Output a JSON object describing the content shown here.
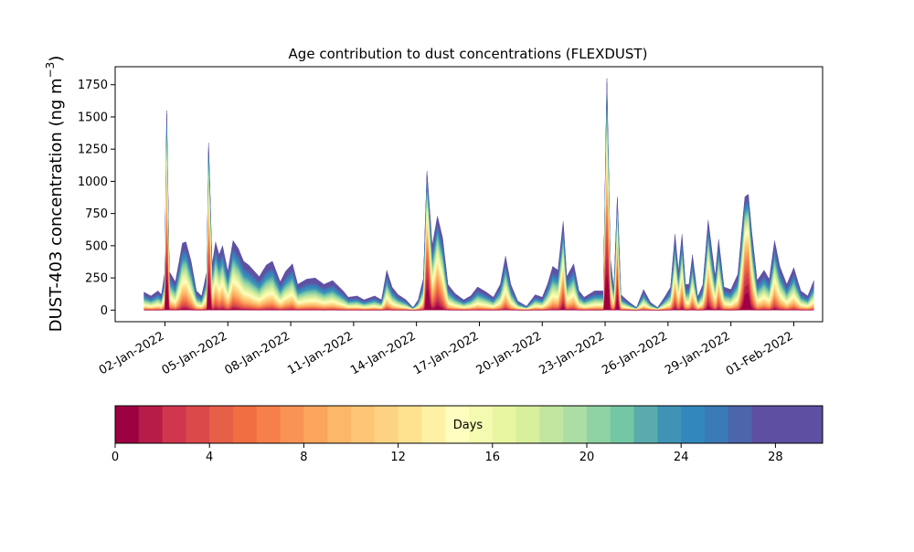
{
  "chart_data": {
    "type": "area",
    "title": "Age contribution to dust concentrations (FLEXDUST)",
    "ylabel": "DUST-403 concentration (ng m",
    "ylabel_superscript": "−3",
    "ylabel_close": ")",
    "xlabel": "",
    "x_dates": [
      "2022-01-01",
      "2022-01-02",
      "2022-01-03",
      "2022-01-04",
      "2022-01-05",
      "2022-01-06",
      "2022-01-07",
      "2022-01-08",
      "2022-01-09",
      "2022-01-10",
      "2022-01-11",
      "2022-01-12",
      "2022-01-13",
      "2022-01-14",
      "2022-01-15",
      "2022-01-16",
      "2022-01-17",
      "2022-01-18",
      "2022-01-19",
      "2022-01-20",
      "2022-01-21",
      "2022-01-22",
      "2022-01-23",
      "2022-01-24",
      "2022-01-25",
      "2022-01-26",
      "2022-01-27",
      "2022-01-28",
      "2022-01-29",
      "2022-01-30",
      "2022-01-31",
      "2022-02-01"
    ],
    "x_tick_labels": [
      "02-Jan-2022",
      "05-Jan-2022",
      "08-Jan-2022",
      "11-Jan-2022",
      "14-Jan-2022",
      "17-Jan-2022",
      "20-Jan-2022",
      "23-Jan-2022",
      "26-Jan-2022",
      "29-Jan-2022",
      "01-Feb-2022"
    ],
    "x_tick_dates": [
      "2022-01-02",
      "2022-01-05",
      "2022-01-08",
      "2022-01-11",
      "2022-01-14",
      "2022-01-17",
      "2022-01-20",
      "2022-01-23",
      "2022-01-26",
      "2022-01-29",
      "2022-02-01"
    ],
    "xlim": [
      "2021-12-30T15:00",
      "2022-02-02T09:00"
    ],
    "ylim": [
      -90,
      1890
    ],
    "y_ticks": [
      0,
      250,
      500,
      750,
      1000,
      1250,
      1500,
      1750
    ],
    "total_profile": [
      [
        "2022-01-01T00:00",
        140
      ],
      [
        "2022-01-01T08:00",
        110
      ],
      [
        "2022-01-01T16:00",
        150
      ],
      [
        "2022-01-01T20:00",
        120
      ],
      [
        "2022-01-02T00:00",
        300
      ],
      [
        "2022-01-02T02:00",
        1550
      ],
      [
        "2022-01-02T05:00",
        300
      ],
      [
        "2022-01-02T12:00",
        220
      ],
      [
        "2022-01-02T20:00",
        520
      ],
      [
        "2022-01-03T00:00",
        530
      ],
      [
        "2022-01-03T06:00",
        380
      ],
      [
        "2022-01-03T12:00",
        150
      ],
      [
        "2022-01-03T18:00",
        110
      ],
      [
        "2022-01-04T00:00",
        300
      ],
      [
        "2022-01-04T02:00",
        1300
      ],
      [
        "2022-01-04T06:00",
        350
      ],
      [
        "2022-01-04T10:00",
        530
      ],
      [
        "2022-01-04T14:00",
        430
      ],
      [
        "2022-01-04T18:00",
        500
      ],
      [
        "2022-01-05T00:00",
        300
      ],
      [
        "2022-01-05T06:00",
        540
      ],
      [
        "2022-01-05T12:00",
        480
      ],
      [
        "2022-01-05T18:00",
        380
      ],
      [
        "2022-01-06T00:00",
        350
      ],
      [
        "2022-01-06T12:00",
        260
      ],
      [
        "2022-01-06T20:00",
        350
      ],
      [
        "2022-01-07T03:00",
        380
      ],
      [
        "2022-01-07T12:00",
        220
      ],
      [
        "2022-01-07T18:00",
        300
      ],
      [
        "2022-01-08T02:00",
        360
      ],
      [
        "2022-01-08T08:00",
        200
      ],
      [
        "2022-01-08T18:00",
        240
      ],
      [
        "2022-01-09T04:00",
        250
      ],
      [
        "2022-01-09T14:00",
        200
      ],
      [
        "2022-01-10T00:00",
        230
      ],
      [
        "2022-01-10T12:00",
        150
      ],
      [
        "2022-01-10T18:00",
        100
      ],
      [
        "2022-01-11T04:00",
        110
      ],
      [
        "2022-01-11T12:00",
        80
      ],
      [
        "2022-01-12T00:00",
        110
      ],
      [
        "2022-01-12T08:00",
        80
      ],
      [
        "2022-01-12T14:00",
        310
      ],
      [
        "2022-01-12T20:00",
        180
      ],
      [
        "2022-01-13T03:00",
        120
      ],
      [
        "2022-01-13T12:00",
        80
      ],
      [
        "2022-01-13T20:00",
        20
      ],
      [
        "2022-01-14T02:00",
        80
      ],
      [
        "2022-01-14T08:00",
        250
      ],
      [
        "2022-01-14T12:00",
        1080
      ],
      [
        "2022-01-14T18:00",
        500
      ],
      [
        "2022-01-15T00:00",
        730
      ],
      [
        "2022-01-15T06:00",
        560
      ],
      [
        "2022-01-15T12:00",
        200
      ],
      [
        "2022-01-15T20:00",
        130
      ],
      [
        "2022-01-16T06:00",
        80
      ],
      [
        "2022-01-16T14:00",
        110
      ],
      [
        "2022-01-16T22:00",
        180
      ],
      [
        "2022-01-17T08:00",
        140
      ],
      [
        "2022-01-17T16:00",
        100
      ],
      [
        "2022-01-18T00:00",
        200
      ],
      [
        "2022-01-18T06:00",
        420
      ],
      [
        "2022-01-18T12:00",
        200
      ],
      [
        "2022-01-18T20:00",
        70
      ],
      [
        "2022-01-19T06:00",
        30
      ],
      [
        "2022-01-19T16:00",
        120
      ],
      [
        "2022-01-20T00:00",
        100
      ],
      [
        "2022-01-20T06:00",
        200
      ],
      [
        "2022-01-20T12:00",
        340
      ],
      [
        "2022-01-20T18:00",
        310
      ],
      [
        "2022-01-21T00:00",
        690
      ],
      [
        "2022-01-21T04:00",
        260
      ],
      [
        "2022-01-21T12:00",
        360
      ],
      [
        "2022-01-21T18:00",
        150
      ],
      [
        "2022-01-22T00:00",
        100
      ],
      [
        "2022-01-22T12:00",
        150
      ],
      [
        "2022-01-22T22:00",
        150
      ],
      [
        "2022-01-23T02:00",
        1800
      ],
      [
        "2022-01-23T06:00",
        400
      ],
      [
        "2022-01-23T10:00",
        160
      ],
      [
        "2022-01-23T14:00",
        880
      ],
      [
        "2022-01-23T18:00",
        120
      ],
      [
        "2022-01-24T04:00",
        60
      ],
      [
        "2022-01-24T12:00",
        20
      ],
      [
        "2022-01-24T20:00",
        160
      ],
      [
        "2022-01-25T04:00",
        60
      ],
      [
        "2022-01-25T12:00",
        20
      ],
      [
        "2022-01-25T20:00",
        100
      ],
      [
        "2022-01-26T03:00",
        180
      ],
      [
        "2022-01-26T08:00",
        590
      ],
      [
        "2022-01-26T12:00",
        300
      ],
      [
        "2022-01-26T16:00",
        590
      ],
      [
        "2022-01-26T20:00",
        200
      ],
      [
        "2022-01-27T00:00",
        200
      ],
      [
        "2022-01-27T04:00",
        430
      ],
      [
        "2022-01-27T10:00",
        100
      ],
      [
        "2022-01-27T16:00",
        200
      ],
      [
        "2022-01-27T22:00",
        700
      ],
      [
        "2022-01-28T06:00",
        260
      ],
      [
        "2022-01-28T10:00",
        550
      ],
      [
        "2022-01-28T16:00",
        180
      ],
      [
        "2022-01-29T00:00",
        160
      ],
      [
        "2022-01-29T08:00",
        280
      ],
      [
        "2022-01-29T16:00",
        880
      ],
      [
        "2022-01-29T20:00",
        900
      ],
      [
        "2022-01-30T00:00",
        600
      ],
      [
        "2022-01-30T06:00",
        230
      ],
      [
        "2022-01-30T14:00",
        310
      ],
      [
        "2022-01-30T20:00",
        240
      ],
      [
        "2022-01-31T02:00",
        540
      ],
      [
        "2022-01-31T08:00",
        340
      ],
      [
        "2022-01-31T16:00",
        200
      ],
      [
        "2022-02-01T00:00",
        330
      ],
      [
        "2022-02-01T08:00",
        150
      ],
      [
        "2022-02-01T16:00",
        110
      ],
      [
        "2022-02-01T23:00",
        230
      ]
    ],
    "colorbar": {
      "label": "Days",
      "range": [
        0,
        30
      ],
      "tick_values": [
        0,
        4,
        8,
        12,
        16,
        20,
        24,
        28
      ],
      "tick_labels": [
        "0",
        "4",
        "8",
        "12",
        "16",
        "20",
        "24",
        "28"
      ],
      "colormap": "Spectral",
      "colors": [
        "#9e0142",
        "#b71c48",
        "#d0364e",
        "#dc494b",
        "#e65f47",
        "#f16e43",
        "#f67f4b",
        "#f99354",
        "#fca55d",
        "#fdb768",
        "#fdc574",
        "#fdd383",
        "#fee28f",
        "#fef0a5",
        "#fffebe",
        "#f4fab0",
        "#e9f6a1",
        "#d8ef9b",
        "#c2e69f",
        "#abdda4",
        "#8fd2a4",
        "#73c7a4",
        "#5aabad",
        "#4193b6",
        "#3288bd",
        "#3a7ab7",
        "#4c65ab",
        "#5e4fa2",
        "#5e4fa2",
        "#5e4fa2"
      ]
    }
  }
}
